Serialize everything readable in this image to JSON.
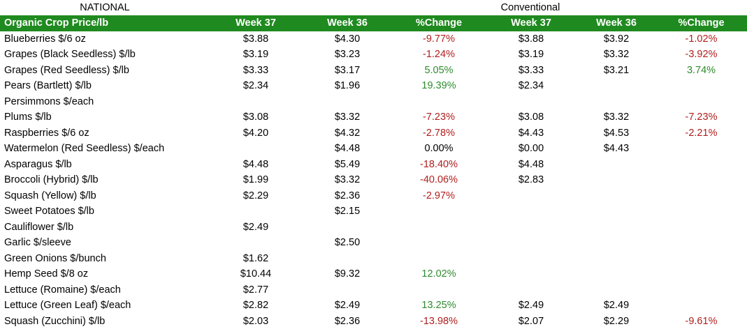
{
  "top_labels": {
    "national": "NATIONAL",
    "conventional": "Conventional"
  },
  "colors": {
    "header_bg": "#1f8a1f",
    "header_text": "#ffffff",
    "negative": "#b01e1e",
    "positive": "#2e8b2e"
  },
  "headers": [
    "Organic Crop Price/lb",
    "Week 37",
    "Week 36",
    "%Change",
    "Week 37",
    "Week 36",
    "%Change"
  ],
  "rows": [
    {
      "crop": "Blueberries $/6 oz",
      "org_w37": "$3.88",
      "org_w36": "$4.30",
      "org_chg": "-9.77%",
      "con_w37": "$3.88",
      "con_w36": "$3.92",
      "con_chg": "-1.02%"
    },
    {
      "crop": "Grapes (Black Seedless) $/lb",
      "org_w37": "$3.19",
      "org_w36": "$3.23",
      "org_chg": "-1.24%",
      "con_w37": "$3.19",
      "con_w36": "$3.32",
      "con_chg": "-3.92%"
    },
    {
      "crop": "Grapes (Red Seedless) $/lb",
      "org_w37": "$3.33",
      "org_w36": "$3.17",
      "org_chg": "5.05%",
      "con_w37": "$3.33",
      "con_w36": "$3.21",
      "con_chg": "3.74%"
    },
    {
      "crop": "Pears (Bartlett) $/lb",
      "org_w37": "$2.34",
      "org_w36": "$1.96",
      "org_chg": "19.39%",
      "con_w37": "$2.34",
      "con_w36": "",
      "con_chg": ""
    },
    {
      "crop": "Persimmons $/each",
      "org_w37": "",
      "org_w36": "",
      "org_chg": "",
      "con_w37": "",
      "con_w36": "",
      "con_chg": ""
    },
    {
      "crop": "Plums $/lb",
      "org_w37": "$3.08",
      "org_w36": "$3.32",
      "org_chg": "-7.23%",
      "con_w37": "$3.08",
      "con_w36": "$3.32",
      "con_chg": "-7.23%"
    },
    {
      "crop": "Raspberries $/6 oz",
      "org_w37": "$4.20",
      "org_w36": "$4.32",
      "org_chg": "-2.78%",
      "con_w37": "$4.43",
      "con_w36": "$4.53",
      "con_chg": "-2.21%"
    },
    {
      "crop": "Watermelon (Red Seedless) $/each",
      "org_w37": "",
      "org_w36": "$4.48",
      "org_chg": "0.00%",
      "con_w37": "$0.00",
      "con_w36": "$4.43",
      "con_chg": ""
    },
    {
      "crop": "Asparagus $/lb",
      "org_w37": "$4.48",
      "org_w36": "$5.49",
      "org_chg": "-18.40%",
      "con_w37": "$4.48",
      "con_w36": "",
      "con_chg": ""
    },
    {
      "crop": "Broccoli (Hybrid) $/lb",
      "org_w37": "$1.99",
      "org_w36": "$3.32",
      "org_chg": "-40.06%",
      "con_w37": "$2.83",
      "con_w36": "",
      "con_chg": ""
    },
    {
      "crop": "Squash (Yellow) $/lb",
      "org_w37": "$2.29",
      "org_w36": "$2.36",
      "org_chg": "-2.97%",
      "con_w37": "",
      "con_w36": "",
      "con_chg": ""
    },
    {
      "crop": "Sweet Potatoes $/lb",
      "org_w37": "",
      "org_w36": "$2.15",
      "org_chg": "",
      "con_w37": "",
      "con_w36": "",
      "con_chg": ""
    },
    {
      "crop": "Cauliflower $/lb",
      "org_w37": "$2.49",
      "org_w36": "",
      "org_chg": "",
      "con_w37": "",
      "con_w36": "",
      "con_chg": ""
    },
    {
      "crop": "Garlic $/sleeve",
      "org_w37": "",
      "org_w36": "$2.50",
      "org_chg": "",
      "con_w37": "",
      "con_w36": "",
      "con_chg": ""
    },
    {
      "crop": "Green Onions $/bunch",
      "org_w37": "$1.62",
      "org_w36": "",
      "org_chg": "",
      "con_w37": "",
      "con_w36": "",
      "con_chg": ""
    },
    {
      "crop": "Hemp Seed $/8 oz",
      "org_w37": "$10.44",
      "org_w36": "$9.32",
      "org_chg": "12.02%",
      "con_w37": "",
      "con_w36": "",
      "con_chg": ""
    },
    {
      "crop": "Lettuce (Romaine) $/each",
      "org_w37": "$2.77",
      "org_w36": "",
      "org_chg": "",
      "con_w37": "",
      "con_w36": "",
      "con_chg": ""
    },
    {
      "crop": "Lettuce (Green Leaf) $/each",
      "org_w37": "$2.82",
      "org_w36": "$2.49",
      "org_chg": "13.25%",
      "con_w37": "$2.49",
      "con_w36": "$2.49",
      "con_chg": ""
    },
    {
      "crop": "Squash (Zucchini) $/lb",
      "org_w37": "$2.03",
      "org_w36": "$2.36",
      "org_chg": "-13.98%",
      "con_w37": "$2.07",
      "con_w36": "$2.29",
      "con_chg": "-9.61%"
    }
  ]
}
